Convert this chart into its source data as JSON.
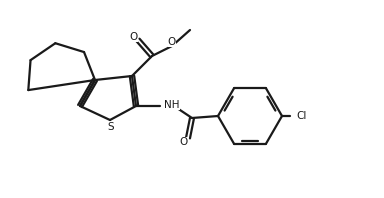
{
  "bg_color": "#ffffff",
  "line_color": "#1a1a1a",
  "line_width": 1.6,
  "figsize": [
    3.84,
    1.98
  ],
  "dpi": 100,
  "xlim": [
    0,
    3.84
  ],
  "ylim": [
    0,
    1.98
  ]
}
